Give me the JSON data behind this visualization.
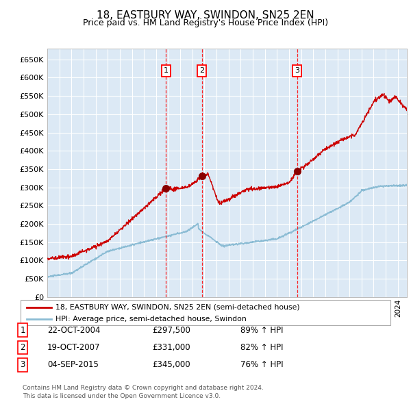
{
  "title": "18, EASTBURY WAY, SWINDON, SN25 2EN",
  "subtitle": "Price paid vs. HM Land Registry's House Price Index (HPI)",
  "background_color": "#ffffff",
  "plot_bg_color": "#dce9f5",
  "grid_color": "#ffffff",
  "red_line_color": "#cc0000",
  "blue_line_color": "#8bbcd4",
  "ylim": [
    0,
    680000
  ],
  "yticks": [
    0,
    50000,
    100000,
    150000,
    200000,
    250000,
    300000,
    350000,
    400000,
    450000,
    500000,
    550000,
    600000,
    650000
  ],
  "xlim_start": 1995.0,
  "xlim_end": 2024.75,
  "purchases": [
    {
      "label": "1",
      "date_num": 2004.81,
      "price": 297500,
      "date_str": "22-OCT-2004",
      "pct": "89%"
    },
    {
      "label": "2",
      "date_num": 2007.79,
      "price": 331000,
      "date_str": "19-OCT-2007",
      "pct": "82%"
    },
    {
      "label": "3",
      "date_num": 2015.67,
      "price": 345000,
      "date_str": "04-SEP-2015",
      "pct": "76%"
    }
  ],
  "legend_line1": "18, EASTBURY WAY, SWINDON, SN25 2EN (semi-detached house)",
  "legend_line2": "HPI: Average price, semi-detached house, Swindon",
  "footer1": "Contains HM Land Registry data © Crown copyright and database right 2024.",
  "footer2": "This data is licensed under the Open Government Licence v3.0."
}
